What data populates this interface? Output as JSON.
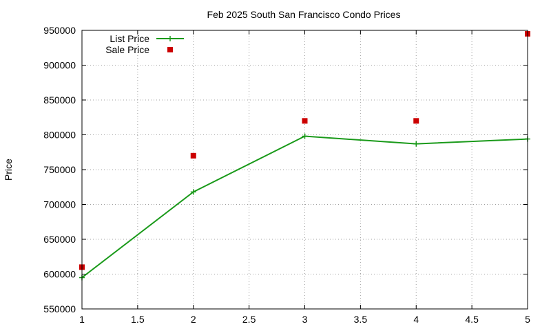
{
  "chart_data": {
    "type": "line",
    "title": "Feb 2025 South San Francisco Condo Prices",
    "ylabel": "Price",
    "xlabel": "",
    "xlim": [
      1,
      5
    ],
    "ylim": [
      550000,
      950000
    ],
    "x_ticks": [
      1,
      1.5,
      2,
      2.5,
      3,
      3.5,
      4,
      4.5,
      5
    ],
    "y_ticks": [
      550000,
      600000,
      650000,
      700000,
      750000,
      800000,
      850000,
      900000,
      950000
    ],
    "grid": true,
    "legend_position": "top-left",
    "series": [
      {
        "name": "List Price",
        "style": "line-points",
        "marker": "plus",
        "color": "#1a9a1a",
        "x": [
          1,
          2,
          3,
          4,
          5
        ],
        "y": [
          595000,
          718000,
          798000,
          787000,
          794000
        ]
      },
      {
        "name": "Sale Price",
        "style": "points",
        "marker": "square",
        "color": "#cc0000",
        "x": [
          1,
          2,
          3,
          4,
          5
        ],
        "y": [
          610000,
          770000,
          820000,
          820000,
          945000
        ]
      }
    ]
  }
}
